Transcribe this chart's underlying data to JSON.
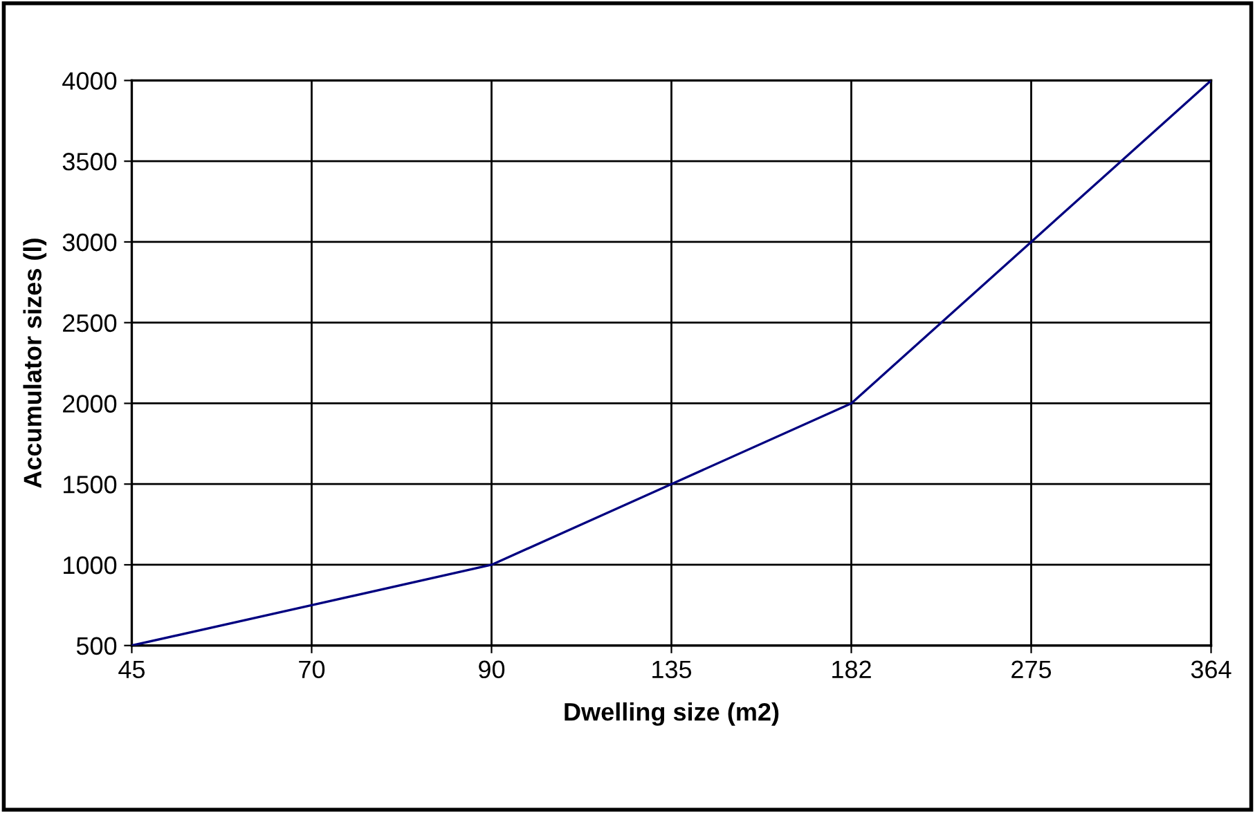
{
  "chart_data": {
    "type": "line",
    "xlabel": "Dwelling size (m2)",
    "ylabel": "Accumulator sizes (l)",
    "categories": [
      "45",
      "70",
      "90",
      "135",
      "182",
      "275",
      "364"
    ],
    "series": [
      {
        "color": "#000080",
        "values": [
          500,
          750,
          1000,
          1500,
          2000,
          3000,
          4000
        ]
      }
    ],
    "ylim": [
      500,
      4000
    ],
    "yticks": [
      500,
      1000,
      1500,
      2000,
      2500,
      3000,
      3500,
      4000
    ],
    "grid": true,
    "legend": false,
    "marker": "none",
    "line_style": "solid"
  }
}
